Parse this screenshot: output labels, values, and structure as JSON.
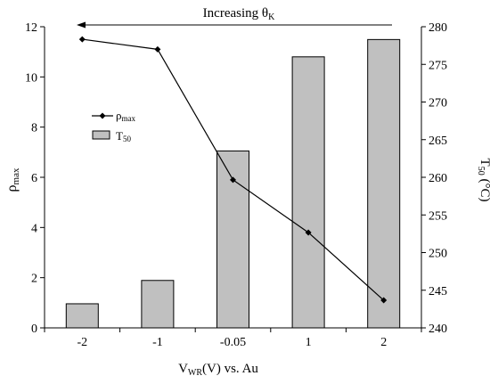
{
  "chart_data": {
    "type": "bar",
    "categories": [
      "-2",
      "-1",
      "-0.05",
      "1",
      "2"
    ],
    "title": "Increasing θ",
    "title_sub": "K",
    "xlabel": {
      "main": "V",
      "sub": "WR",
      "rest": "(V) vs. Au"
    },
    "ylabel_left": {
      "main": "ρ",
      "sub": "max"
    },
    "ylabel_right": {
      "main": "T",
      "sub": "50",
      "rest": " (°C)"
    },
    "yleft": {
      "min": 0,
      "max": 12,
      "ticks": [
        "0",
        "2",
        "4",
        "6",
        "8",
        "10",
        "12"
      ]
    },
    "yright": {
      "min": 240,
      "max": 280,
      "ticks": [
        "240",
        "245",
        "250",
        "255",
        "260",
        "265",
        "270",
        "275",
        "280"
      ]
    },
    "series": [
      {
        "name": {
          "main": "T",
          "sub": "50"
        },
        "type": "bar",
        "axis": "right",
        "color": "#c0c0c0",
        "values": [
          243.2,
          246.3,
          263.5,
          276.0,
          278.3
        ]
      },
      {
        "name": {
          "main": "ρ",
          "sub": "max"
        },
        "type": "line",
        "axis": "left",
        "color": "#000000",
        "marker": "diamond",
        "values": [
          11.5,
          11.1,
          5.9,
          3.8,
          1.1
        ]
      }
    ],
    "legend_position": "left-middle",
    "grid": false
  }
}
